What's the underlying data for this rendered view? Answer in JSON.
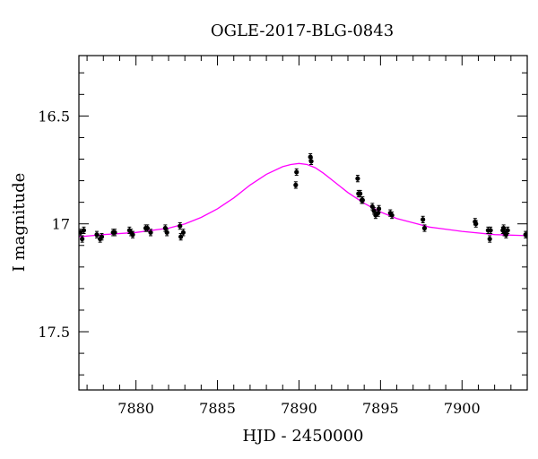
{
  "chart_data": {
    "type": "scatter",
    "title": "OGLE-2017-BLG-0843",
    "xlabel": "HJD - 2450000",
    "ylabel": "I magnitude",
    "xlim": [
      7876.5,
      7904
    ],
    "ylim": [
      17.77,
      16.22
    ],
    "y_inverted": true,
    "x_ticks": [
      7880,
      7885,
      7890,
      7895,
      7900
    ],
    "x_tick_labels": [
      "7880",
      "7885",
      "7890",
      "7895",
      "7900"
    ],
    "y_ticks": [
      16.5,
      17,
      17.5
    ],
    "y_tick_labels": [
      "16.5",
      "17",
      "17.5"
    ],
    "x_minor_step": 1,
    "y_minor_step": 0.1,
    "grid": false,
    "colors": {
      "points": "#000000",
      "model": "#ff00ff"
    },
    "series": [
      {
        "kind": "points",
        "error": 0.015,
        "x": [
          7876.6,
          7876.7,
          7876.8,
          7877.6,
          7877.8,
          7877.9,
          7878.6,
          7878.7,
          7879.6,
          7879.7,
          7879.8,
          7880.6,
          7880.7,
          7880.9,
          7881.8,
          7881.9,
          7882.7,
          7882.75,
          7882.9,
          7889.8,
          7889.85,
          7890.7,
          7890.75,
          7893.6,
          7893.65,
          7893.75,
          7893.85,
          7893.9,
          7894.5,
          7894.6,
          7894.7,
          7894.85,
          7894.9,
          7895.6,
          7895.7,
          7897.6,
          7897.7,
          7900.8,
          7900.85,
          7901.6,
          7901.7,
          7901.75,
          7902.5,
          7902.55,
          7902.6,
          7902.7,
          7902.8,
          7903.9,
          7904.0
        ],
        "y": [
          17.04,
          17.07,
          17.03,
          17.05,
          17.07,
          17.06,
          17.04,
          17.04,
          17.03,
          17.04,
          17.05,
          17.02,
          17.02,
          17.04,
          17.02,
          17.04,
          17.01,
          17.06,
          17.04,
          16.82,
          16.76,
          16.69,
          16.71,
          16.79,
          16.86,
          16.86,
          16.89,
          16.89,
          16.92,
          16.94,
          16.96,
          16.95,
          16.93,
          16.95,
          16.96,
          16.98,
          17.02,
          16.99,
          17.0,
          17.03,
          17.07,
          17.03,
          17.03,
          17.02,
          17.04,
          17.05,
          17.03,
          17.05,
          17.05
        ]
      },
      {
        "kind": "model-curve",
        "x": [
          7876.5,
          7878,
          7880,
          7882,
          7883,
          7884,
          7885,
          7886,
          7887,
          7888,
          7889,
          7889.5,
          7890,
          7890.5,
          7891,
          7891.5,
          7892,
          7893,
          7894,
          7895,
          7896,
          7897,
          7898,
          7900,
          7902,
          7904
        ],
        "y": [
          17.06,
          17.05,
          17.04,
          17.02,
          17.0,
          16.97,
          16.93,
          16.88,
          16.82,
          16.77,
          16.735,
          16.725,
          16.72,
          16.725,
          16.74,
          16.765,
          16.795,
          16.855,
          16.905,
          16.945,
          16.975,
          16.995,
          17.015,
          17.035,
          17.05,
          17.055
        ]
      }
    ]
  }
}
